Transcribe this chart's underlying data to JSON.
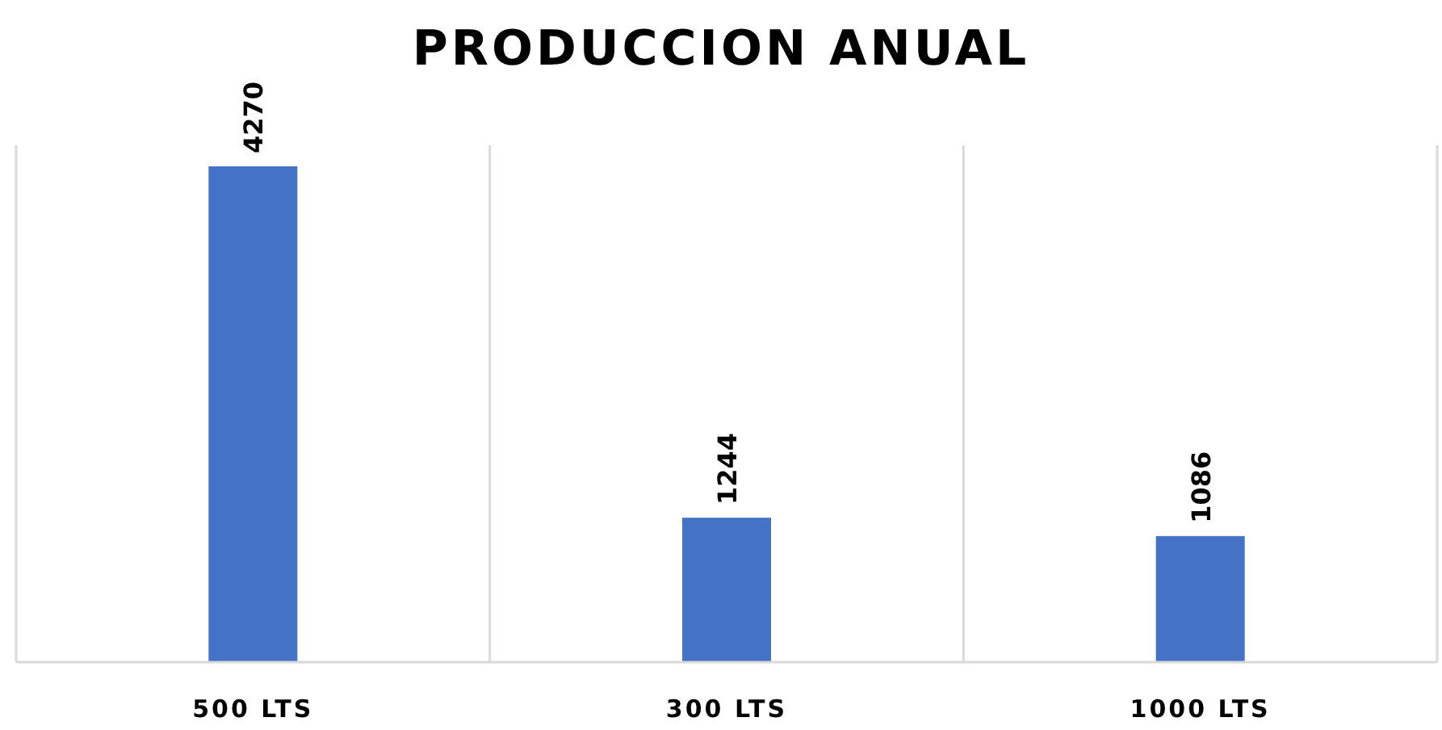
{
  "chart_data": {
    "type": "bar",
    "title": "PRODUCCION  ANUAL",
    "categories": [
      "500 LTS",
      "300 LTS",
      "1000 LTS"
    ],
    "values": [
      4270,
      1244,
      1086
    ],
    "color": "#4472c4",
    "data_labels": true,
    "grid": "x"
  }
}
